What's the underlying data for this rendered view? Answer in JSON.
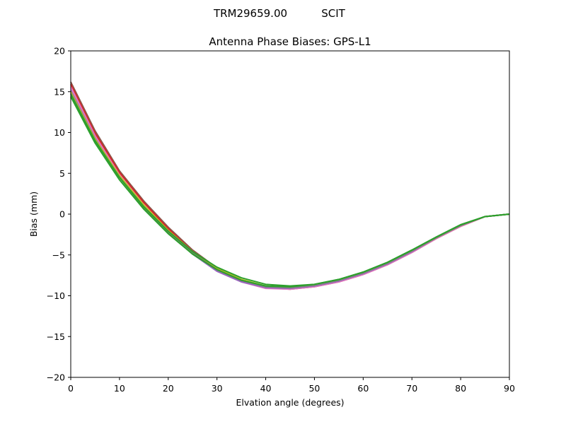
{
  "header": {
    "antenna": "TRM29659.00",
    "radome": "SCIT"
  },
  "chart_data": {
    "type": "line",
    "title": "Antenna Phase Biases: GPS-L1",
    "xlabel": "Elvation angle (degrees)",
    "ylabel": "Bias (mm)",
    "xlim": [
      0,
      90
    ],
    "ylim": [
      -20,
      20
    ],
    "xticks": [
      0,
      10,
      20,
      30,
      40,
      50,
      60,
      70,
      80,
      90
    ],
    "yticks": [
      -20,
      -15,
      -10,
      -5,
      0,
      5,
      10,
      15,
      20
    ],
    "grid": false,
    "legend": "none",
    "x": [
      0,
      5,
      10,
      15,
      20,
      25,
      30,
      35,
      40,
      45,
      50,
      55,
      60,
      65,
      70,
      75,
      80,
      85,
      90
    ],
    "series": [
      {
        "color": "#8c564b",
        "values": [
          16.2,
          10.2,
          5.3,
          1.6,
          -1.6,
          -4.4,
          -6.6,
          -8.1,
          -8.9,
          -9.1,
          -8.8,
          -8.2,
          -7.3,
          -6.1,
          -4.6,
          -2.9,
          -1.4,
          -0.3,
          0.0
        ]
      },
      {
        "color": "#d62728",
        "values": [
          15.9,
          9.9,
          5.1,
          1.4,
          -1.8,
          -4.6,
          -6.8,
          -8.2,
          -9.0,
          -9.2,
          -8.9,
          -8.3,
          -7.4,
          -6.2,
          -4.7,
          -3.0,
          -1.5,
          -0.3,
          0.0
        ]
      },
      {
        "color": "#e377c2",
        "values": [
          15.6,
          9.6,
          4.8,
          1.1,
          -2.1,
          -4.8,
          -7.0,
          -8.3,
          -9.1,
          -9.2,
          -8.9,
          -8.3,
          -7.4,
          -6.2,
          -4.7,
          -3.0,
          -1.5,
          -0.3,
          0.0
        ]
      },
      {
        "color": "#9467bd",
        "values": [
          15.2,
          9.3,
          4.6,
          0.9,
          -2.3,
          -4.9,
          -7.0,
          -8.3,
          -9.0,
          -9.1,
          -8.8,
          -8.2,
          -7.3,
          -6.1,
          -4.6,
          -2.9,
          -1.4,
          -0.3,
          0.0
        ]
      },
      {
        "color": "#bcbd22",
        "values": [
          15.0,
          9.2,
          4.7,
          1.1,
          -2.0,
          -4.6,
          -6.6,
          -8.0,
          -8.8,
          -9.0,
          -8.7,
          -8.1,
          -7.2,
          -6.0,
          -4.5,
          -2.9,
          -1.4,
          -0.3,
          0.0
        ]
      },
      {
        "color": "#7f7f7f",
        "values": [
          14.8,
          9.0,
          4.5,
          0.8,
          -2.3,
          -4.8,
          -6.8,
          -8.1,
          -8.9,
          -9.0,
          -8.7,
          -8.1,
          -7.2,
          -6.0,
          -4.5,
          -2.9,
          -1.4,
          -0.3,
          0.0
        ]
      },
      {
        "color": "#2ca02c",
        "values": [
          14.4,
          8.7,
          4.2,
          0.6,
          -2.4,
          -4.9,
          -6.8,
          -8.1,
          -8.8,
          -8.9,
          -8.6,
          -8.0,
          -7.1,
          -5.9,
          -4.4,
          -2.8,
          -1.3,
          -0.3,
          0.0
        ]
      },
      {
        "color": "#2ca02c",
        "values": [
          14.7,
          9.0,
          4.5,
          0.9,
          -2.1,
          -4.6,
          -6.5,
          -7.8,
          -8.6,
          -8.8,
          -8.6,
          -8.0,
          -7.1,
          -5.9,
          -4.4,
          -2.8,
          -1.3,
          -0.3,
          0.0
        ]
      }
    ]
  }
}
